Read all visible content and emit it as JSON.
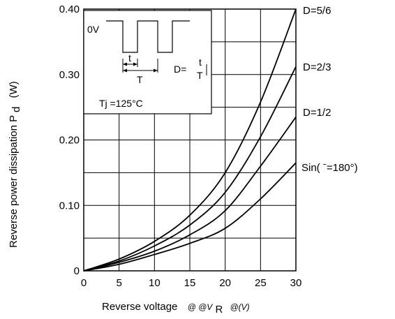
{
  "chart_data": {
    "type": "line",
    "xlabel": "Reverse voltage",
    "xlabel_extra": "@ @V",
    "xlabel_sub": "R",
    "xlabel_unit": "@(V)",
    "ylabel": "Reverse power dissipation  P",
    "ylabel_sub": "d",
    "ylabel_unit": "(W)",
    "xlim": [
      0,
      30
    ],
    "ylim": [
      0,
      0.4
    ],
    "x_ticks": [
      "0",
      "5",
      "10",
      "15",
      "20",
      "25",
      "30"
    ],
    "y_ticks": [
      "0",
      "0.10",
      "0.20",
      "0.30",
      "0.40"
    ],
    "grid": true,
    "series": [
      {
        "name": "D=5/6",
        "x": [
          0,
          5,
          10,
          15,
          20,
          25,
          30
        ],
        "y": [
          0,
          0.018,
          0.045,
          0.085,
          0.15,
          0.258,
          0.4
        ]
      },
      {
        "name": "D=2/3",
        "x": [
          0,
          5,
          10,
          15,
          20,
          25,
          30
        ],
        "y": [
          0,
          0.015,
          0.038,
          0.07,
          0.12,
          0.205,
          0.312
        ]
      },
      {
        "name": "D=1/2",
        "x": [
          0,
          5,
          10,
          15,
          20,
          25,
          30
        ],
        "y": [
          0,
          0.013,
          0.03,
          0.055,
          0.092,
          0.16,
          0.235
        ]
      },
      {
        "name": "Sin(  ˉ=180°)",
        "x": [
          0,
          5,
          10,
          15,
          20,
          25,
          30
        ],
        "y": [
          0,
          0.01,
          0.025,
          0.042,
          0.065,
          0.11,
          0.165
        ]
      }
    ],
    "inset": {
      "zero_label": "0V",
      "t_label": "t",
      "T_label": "T",
      "duty_prefix": "D=",
      "duty_num": "t",
      "duty_den": "T",
      "tj_label": "Tj =125°C"
    }
  }
}
